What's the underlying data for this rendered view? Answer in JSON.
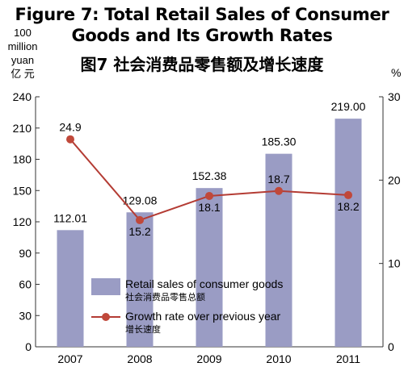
{
  "title": {
    "en_line1": "Figure 7: Total Retail Sales of Consumer",
    "en_line2": "Goods and Its Growth Rates",
    "cn": "图7 社会消费品零售额及增长速度"
  },
  "units": {
    "left_line1": "100",
    "left_line2": "million",
    "left_line3": "yuan",
    "left_line4": "亿 元",
    "right": "%"
  },
  "colors": {
    "bar": "#9a9cc4",
    "line": "#b43c34",
    "marker": "#c0483a",
    "axis": "#333333"
  },
  "chart_data": {
    "type": "bar",
    "categories": [
      "2007",
      "2008",
      "2009",
      "2010",
      "2011"
    ],
    "series": [
      {
        "type": "bar",
        "axis": "left",
        "name": "Retail sales of consumer goods",
        "name_cn": "社会消费品零售总额",
        "values": [
          112.01,
          129.08,
          152.38,
          185.3,
          219.0
        ],
        "labels": [
          "112.01",
          "129.08",
          "152.38",
          "185.30",
          "219.00"
        ]
      },
      {
        "type": "line",
        "axis": "right",
        "name": "Growth rate over previous year",
        "name_cn": "增长速度",
        "values": [
          24.9,
          15.2,
          18.1,
          18.7,
          18.2
        ],
        "labels": [
          "24.9",
          "15.2",
          "18.1",
          "18.7",
          "18.2"
        ]
      }
    ],
    "y_left": {
      "min": 0,
      "max": 240,
      "ticks": [
        "0",
        "30",
        "60",
        "90",
        "120",
        "150",
        "180",
        "210",
        "240"
      ]
    },
    "y_right": {
      "min": 0,
      "max": 30,
      "ticks": [
        "0",
        "10",
        "20",
        "30"
      ]
    },
    "legend_position": "bottom-left inside plot",
    "grid": false
  }
}
